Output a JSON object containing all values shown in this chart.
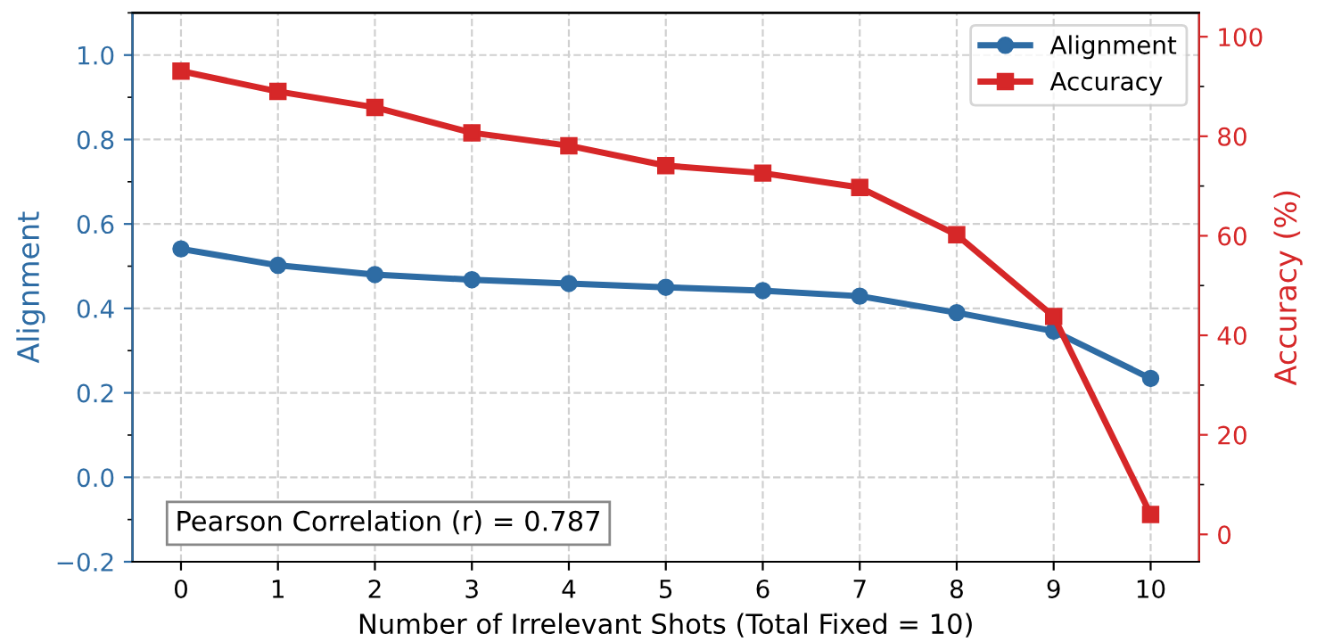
{
  "chart_data": {
    "type": "line",
    "xlabel": "Number of Irrelevant Shots (Total Fixed = 10)",
    "ylabel": "Alignment",
    "y2label": "Accuracy (%)",
    "x": [
      0,
      1,
      2,
      3,
      4,
      5,
      6,
      7,
      8,
      9,
      10
    ],
    "xlim": [
      -0.5,
      10.5
    ],
    "xticks": [
      0,
      1,
      2,
      3,
      4,
      5,
      6,
      7,
      8,
      9,
      10
    ],
    "ylim": [
      -0.2,
      1.1
    ],
    "yticks": [
      {
        "value": -0.2,
        "label": "−0.2"
      },
      {
        "value": 0,
        "label": "0.0"
      },
      0.2,
      0.4,
      0.6,
      0.8,
      {
        "value": 1,
        "label": "1.0"
      }
    ],
    "y2lim": [
      -5.5,
      104.8
    ],
    "y2ticks": [
      0,
      20,
      40,
      60,
      80,
      100
    ],
    "series": [
      {
        "name": "Alignment",
        "color": "#2e6ca4",
        "marker": "circle",
        "values": [
          0.541,
          0.502,
          0.48,
          0.468,
          0.459,
          0.45,
          0.442,
          0.429,
          0.39,
          0.346,
          0.234
        ]
      },
      {
        "name": "Accuracy",
        "color": "#d62728",
        "marker": "square",
        "axis": "y2",
        "values": [
          93.1,
          89.0,
          85.8,
          80.7,
          78.1,
          74.1,
          72.6,
          69.7,
          60.2,
          43.8,
          4.0
        ]
      }
    ],
    "grid": true,
    "legend": "top right",
    "line_style": "solid",
    "annotations": [
      "Pearson Correlation (r) = 0.787"
    ]
  }
}
